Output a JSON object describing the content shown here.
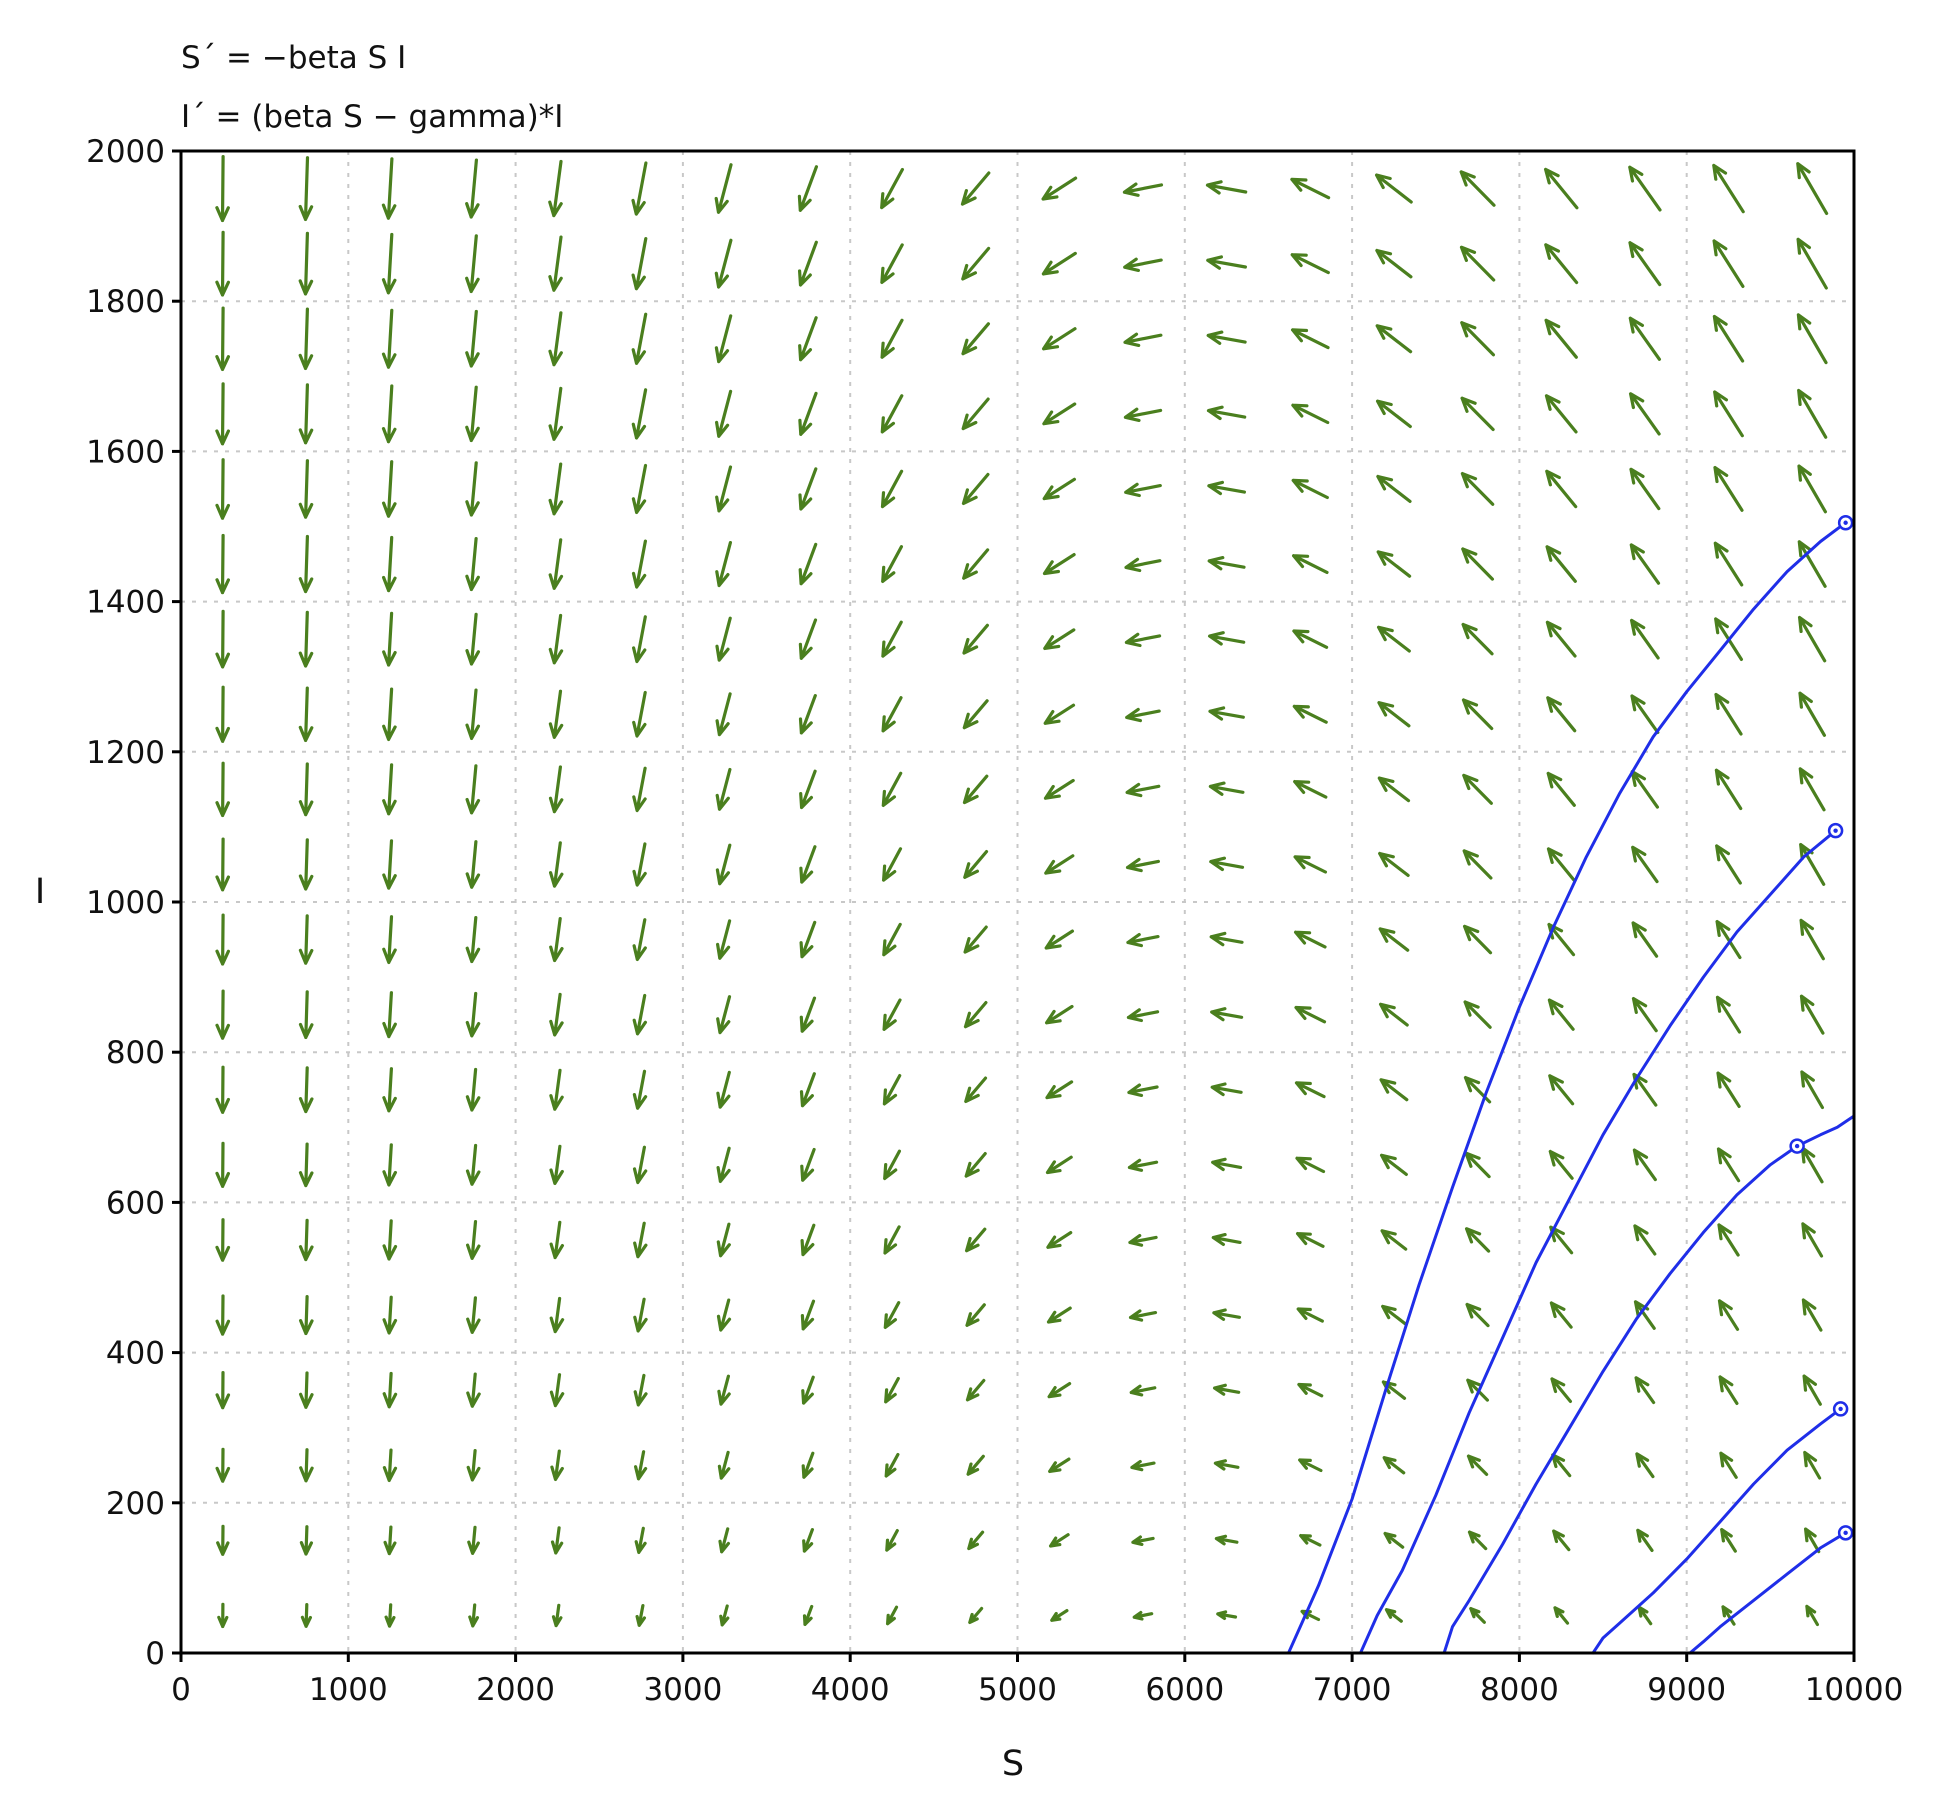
{
  "chart_data": {
    "type": "vector-field",
    "equations": [
      "S´ = −beta S I",
      "I´ = (beta S − gamma)*I"
    ],
    "xlabel": "S",
    "ylabel": "I",
    "xlim": [
      0,
      10000
    ],
    "ylim": [
      0,
      2000
    ],
    "xticks": [
      0,
      1000,
      2000,
      3000,
      4000,
      5000,
      6000,
      7000,
      8000,
      9000,
      10000
    ],
    "yticks": [
      0,
      200,
      400,
      600,
      800,
      1000,
      1200,
      1400,
      1600,
      1800,
      2000
    ],
    "grid": true,
    "field": {
      "s_count": 20,
      "i_count": 20,
      "beta": 0.0001,
      "gamma": 0.6,
      "color": "#4a7f1e"
    },
    "trajectories": [
      {
        "start": [
          9950,
          1505
        ],
        "points": [
          [
            9950,
            1505
          ],
          [
            9800,
            1480
          ],
          [
            9600,
            1440
          ],
          [
            9400,
            1390
          ],
          [
            9200,
            1335
          ],
          [
            9000,
            1280
          ],
          [
            8800,
            1220
          ],
          [
            8600,
            1145
          ],
          [
            8400,
            1060
          ],
          [
            8200,
            965
          ],
          [
            8000,
            860
          ],
          [
            7800,
            745
          ],
          [
            7600,
            620
          ],
          [
            7400,
            490
          ],
          [
            7200,
            350
          ],
          [
            7000,
            205
          ],
          [
            6800,
            90
          ],
          [
            6700,
            40
          ],
          [
            6620,
            0
          ]
        ]
      },
      {
        "start": [
          9890,
          1095
        ],
        "points": [
          [
            9890,
            1095
          ],
          [
            9700,
            1060
          ],
          [
            9500,
            1010
          ],
          [
            9300,
            960
          ],
          [
            9100,
            900
          ],
          [
            8900,
            835
          ],
          [
            8700,
            765
          ],
          [
            8500,
            690
          ],
          [
            8300,
            605
          ],
          [
            8100,
            520
          ],
          [
            7900,
            420
          ],
          [
            7700,
            320
          ],
          [
            7500,
            210
          ],
          [
            7300,
            110
          ],
          [
            7150,
            50
          ],
          [
            7050,
            0
          ]
        ]
      },
      {
        "start": [
          9660,
          675
        ],
        "points": [
          [
            10000,
            715
          ],
          [
            9900,
            700
          ],
          [
            9800,
            690
          ],
          [
            9660,
            675
          ],
          [
            9500,
            650
          ],
          [
            9300,
            610
          ],
          [
            9100,
            560
          ],
          [
            8900,
            505
          ],
          [
            8700,
            445
          ],
          [
            8500,
            375
          ],
          [
            8300,
            300
          ],
          [
            8100,
            225
          ],
          [
            7900,
            145
          ],
          [
            7700,
            70
          ],
          [
            7600,
            35
          ],
          [
            7550,
            0
          ]
        ]
      },
      {
        "start": [
          9920,
          325
        ],
        "points": [
          [
            9920,
            325
          ],
          [
            9800,
            305
          ],
          [
            9600,
            270
          ],
          [
            9400,
            225
          ],
          [
            9200,
            175
          ],
          [
            9000,
            125
          ],
          [
            8800,
            80
          ],
          [
            8600,
            40
          ],
          [
            8500,
            20
          ],
          [
            8440,
            0
          ]
        ]
      },
      {
        "start": [
          9950,
          160
        ],
        "points": [
          [
            9950,
            160
          ],
          [
            9800,
            140
          ],
          [
            9600,
            105
          ],
          [
            9400,
            70
          ],
          [
            9200,
            35
          ],
          [
            9100,
            15
          ],
          [
            9020,
            0
          ]
        ]
      }
    ],
    "trajectory_color": "#1f2ee8"
  }
}
